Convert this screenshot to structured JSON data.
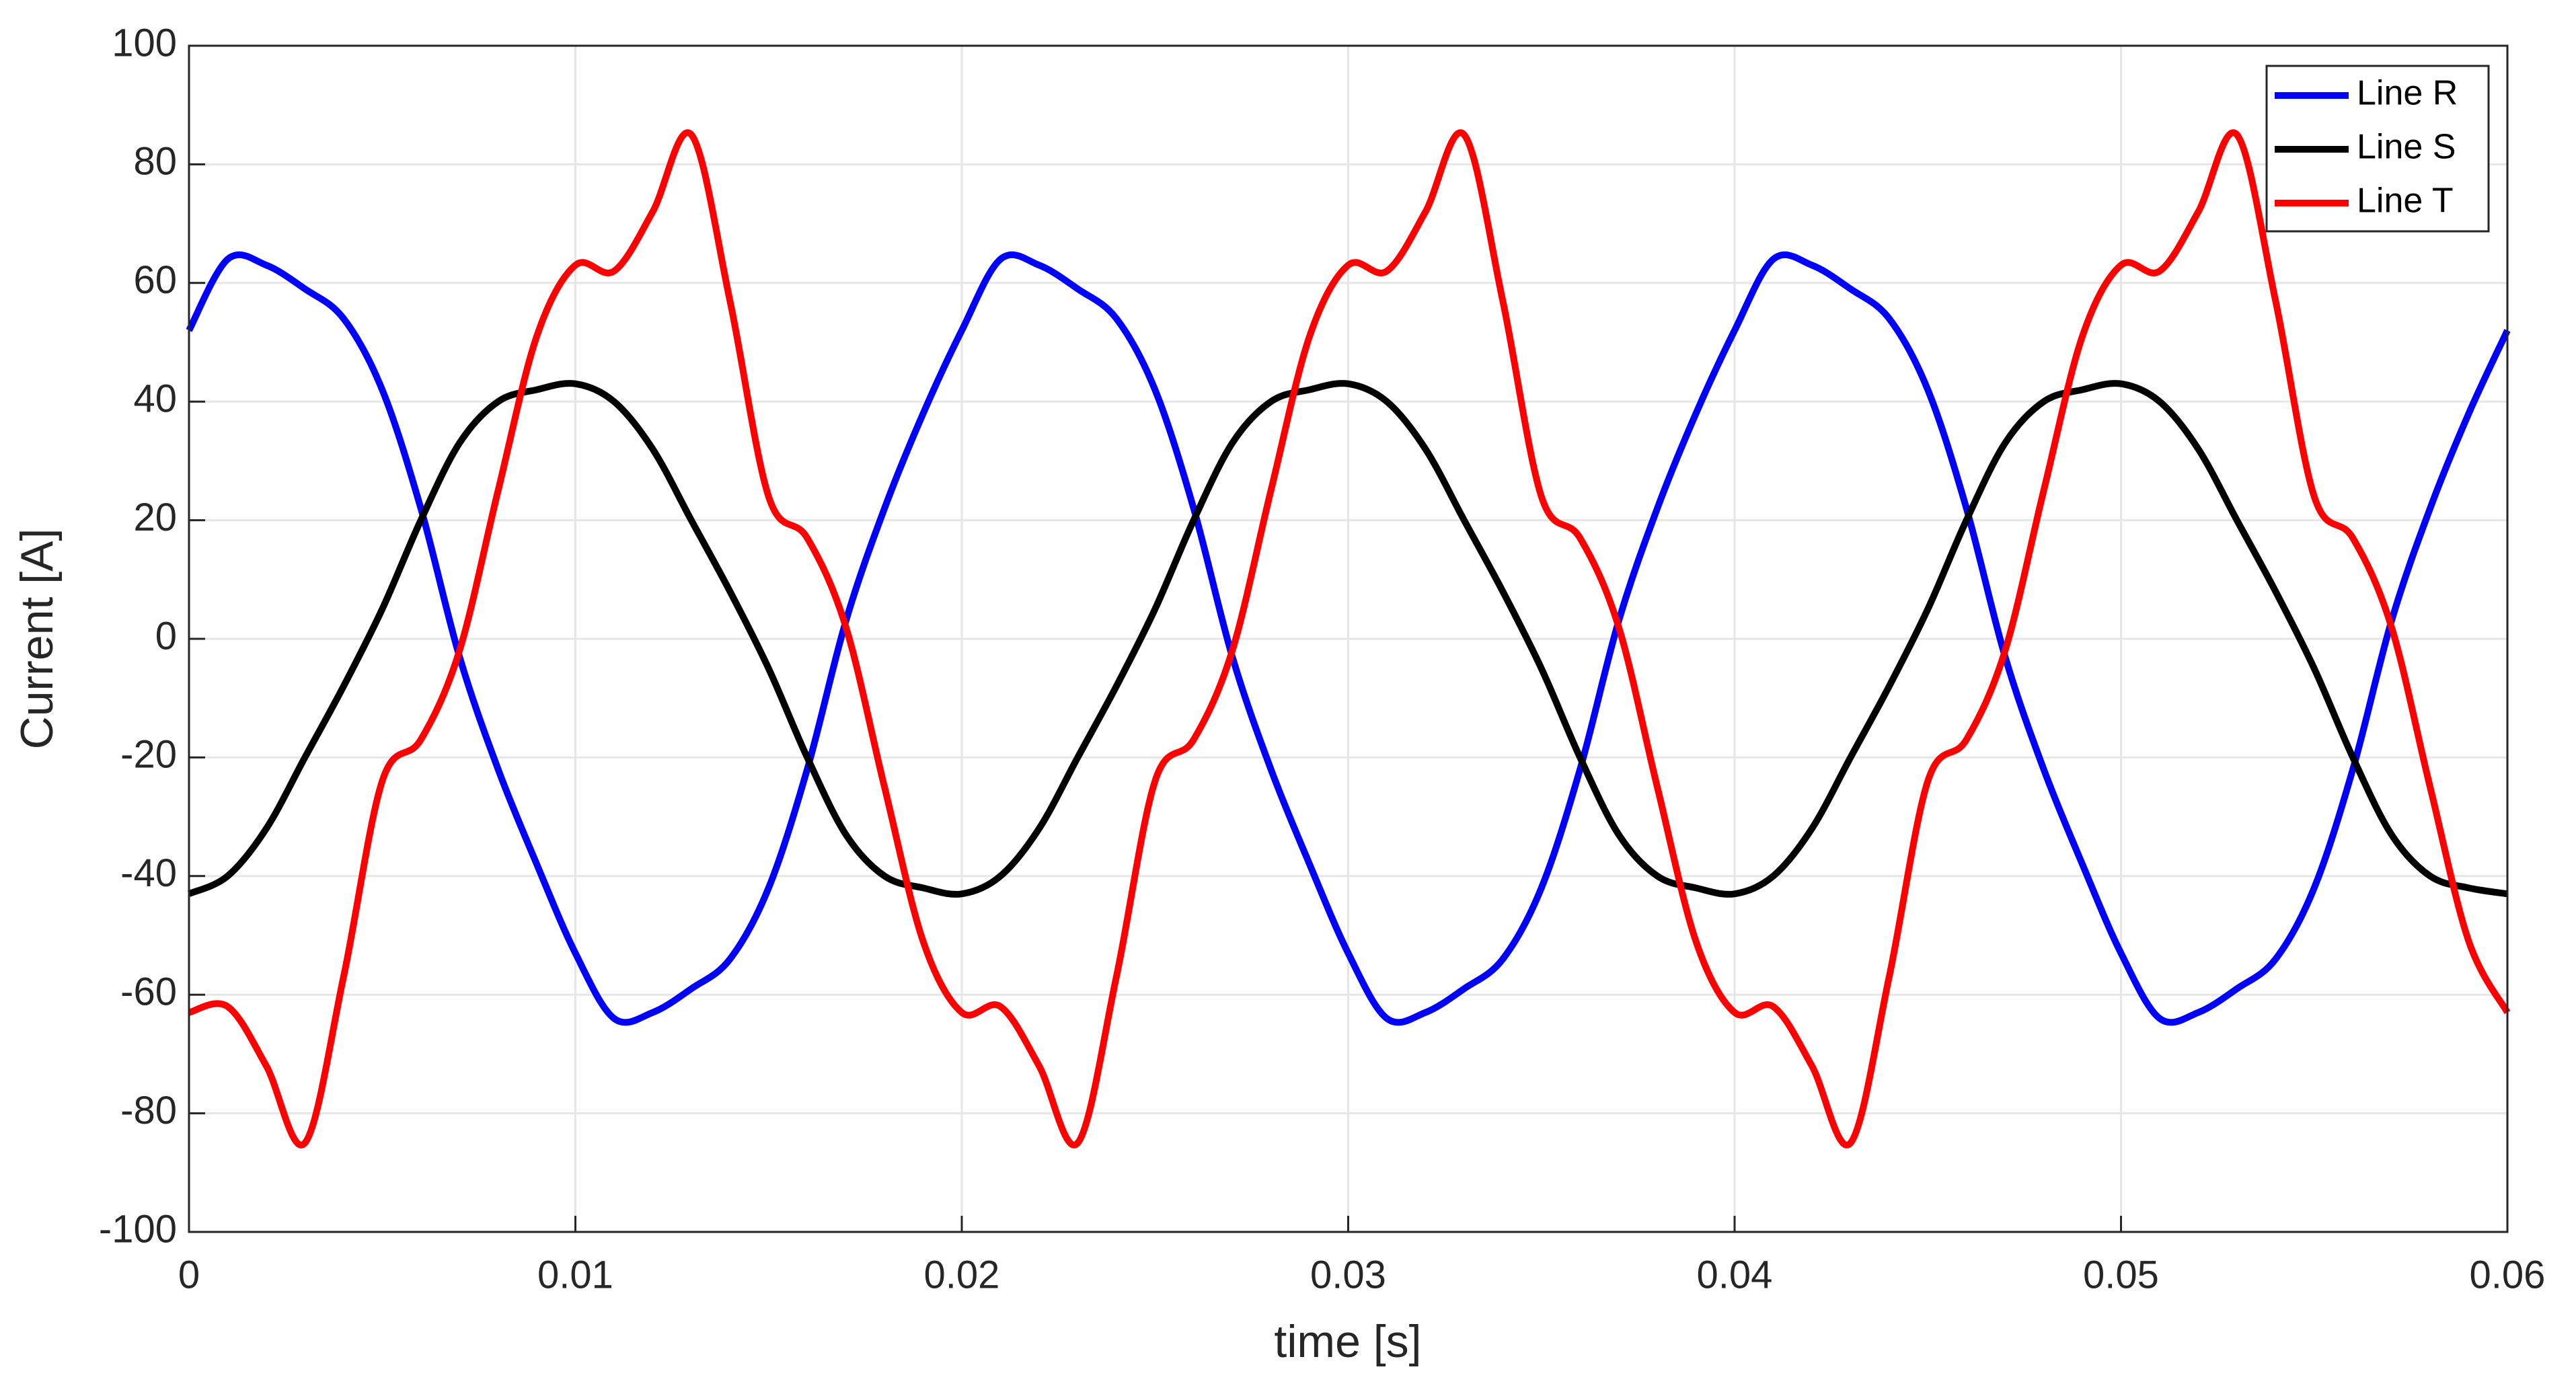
{
  "chart_data": {
    "type": "line",
    "xlabel": "time [s]",
    "ylabel": "Current [A]",
    "x": [
      0,
      0.001,
      0.002,
      0.003,
      0.004,
      0.005,
      0.006,
      0.007,
      0.008,
      0.009,
      0.01,
      0.011,
      0.012,
      0.013,
      0.014,
      0.015,
      0.016,
      0.017,
      0.018,
      0.019,
      0.02,
      0.021,
      0.022,
      0.023,
      0.024,
      0.025,
      0.026,
      0.027,
      0.028,
      0.029,
      0.03,
      0.031,
      0.032,
      0.033,
      0.034,
      0.035,
      0.036,
      0.037,
      0.038,
      0.039,
      0.04,
      0.041,
      0.042,
      0.043,
      0.044,
      0.045,
      0.046,
      0.047,
      0.048,
      0.049,
      0.05,
      0.051,
      0.052,
      0.053,
      0.054,
      0.055,
      0.056,
      0.057,
      0.058,
      0.059,
      0.06
    ],
    "series": [
      {
        "name": "Line R",
        "color": "#0000ff",
        "values": [
          52,
          64,
          63,
          59,
          54,
          42,
          22,
          -3,
          -22,
          -38,
          -53,
          -64,
          -63,
          -59,
          -54,
          -42,
          -22,
          3,
          22,
          38,
          52,
          64,
          63,
          59,
          54,
          42,
          22,
          -3,
          -22,
          -38,
          -53,
          -64,
          -63,
          -59,
          -54,
          -42,
          -22,
          3,
          22,
          38,
          52,
          64,
          63,
          59,
          54,
          42,
          22,
          -3,
          -22,
          -38,
          -53,
          -64,
          -63,
          -59,
          -54,
          -42,
          -22,
          3,
          22,
          38,
          52
        ]
      },
      {
        "name": "Line S",
        "color": "#000000",
        "values": [
          -43,
          -40,
          -32,
          -20,
          -8,
          5,
          20,
          33,
          40,
          42,
          43,
          40,
          32,
          20,
          8,
          -5,
          -20,
          -33,
          -40,
          -42,
          -43,
          -40,
          -32,
          -20,
          -8,
          5,
          20,
          33,
          40,
          42,
          43,
          40,
          32,
          20,
          8,
          -5,
          -20,
          -33,
          -40,
          -42,
          -43,
          -40,
          -32,
          -20,
          -8,
          5,
          20,
          33,
          40,
          42,
          43,
          40,
          32,
          20,
          8,
          -5,
          -20,
          -33,
          -40,
          -42,
          -43
        ]
      },
      {
        "name": "Line T",
        "color": "#ff0000",
        "values": [
          -63,
          -62,
          -72,
          -85,
          -57,
          -24,
          -17,
          -2,
          25,
          51,
          63,
          62,
          72,
          85,
          57,
          24,
          17,
          2,
          -25,
          -51,
          -63,
          -62,
          -72,
          -85,
          -57,
          -24,
          -17,
          -2,
          25,
          51,
          63,
          62,
          72,
          85,
          57,
          24,
          17,
          2,
          -25,
          -51,
          -63,
          -62,
          -72,
          -85,
          -57,
          -24,
          -17,
          -2,
          25,
          51,
          63,
          62,
          72,
          85,
          57,
          24,
          17,
          2,
          -25,
          -51,
          -63
        ]
      }
    ],
    "xlim": [
      0,
      0.06
    ],
    "xticks": [
      0,
      0.01,
      0.02,
      0.03,
      0.04,
      0.05,
      0.06
    ],
    "ylim": [
      -100,
      100
    ],
    "yticks": [
      -100,
      -80,
      -60,
      -40,
      -20,
      0,
      20,
      40,
      60,
      80,
      100
    ],
    "grid": true,
    "legend": "top-right"
  }
}
